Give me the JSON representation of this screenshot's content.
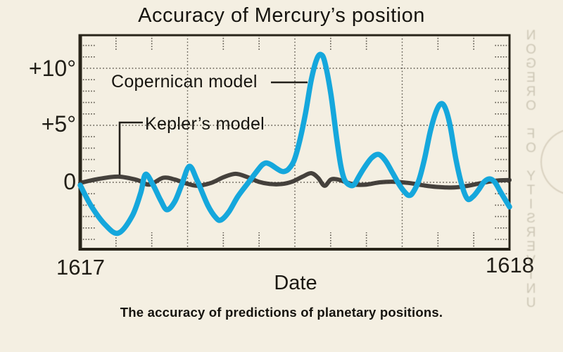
{
  "figure": {
    "title": "Accuracy of Mercury’s position",
    "caption": "The accuracy of predictions of planetary positions.",
    "watermark_text": "UNIVERSITY OF OREGON"
  },
  "axes": {
    "x_title": "Date",
    "x_tick_labels": [
      "1617",
      "1618"
    ],
    "y_tick_labels": [
      "+10°",
      "+5°",
      "0"
    ]
  },
  "annotations": {
    "copernican_label": "Copernican model",
    "kepler_label": "Kepler’s model"
  },
  "colors": {
    "background": "#f4efe2",
    "axis": "#282419",
    "grid": "#5a554b",
    "copernican": "#15a7dc",
    "kepler": "#3b3733",
    "leader": "#23201a"
  },
  "chart_data": {
    "type": "line",
    "title": "Accuracy of Mercury’s position",
    "xlabel": "Date",
    "ylabel": "",
    "x_range": [
      1617,
      1618
    ],
    "ylim": [
      -6.4,
      12.9
    ],
    "y_major_gridlines_deg": [
      0,
      5,
      10
    ],
    "y_minor_tick_step_deg": 1,
    "x_major_divisions": 4,
    "x_minor_per_major": 3,
    "grid": "dotted majors with stippled edge ticks",
    "legend_position": "inline labels with leader lines",
    "series": [
      {
        "name": "Copernican model",
        "color": "#15a7dc",
        "x_unit": "fraction of span 1617→1618",
        "y_unit": "degrees of error",
        "points": [
          [
            0.0,
            -0.25
          ],
          [
            0.026,
            -2.1
          ],
          [
            0.059,
            -3.75
          ],
          [
            0.089,
            -4.45
          ],
          [
            0.121,
            -2.95
          ],
          [
            0.141,
            -0.9
          ],
          [
            0.152,
            0.7
          ],
          [
            0.17,
            -0.25
          ],
          [
            0.187,
            -1.55
          ],
          [
            0.202,
            -2.4
          ],
          [
            0.22,
            -1.7
          ],
          [
            0.236,
            -0.25
          ],
          [
            0.254,
            1.4
          ],
          [
            0.272,
            0.2
          ],
          [
            0.297,
            -2.0
          ],
          [
            0.316,
            -3.1
          ],
          [
            0.328,
            -3.3
          ],
          [
            0.346,
            -2.6
          ],
          [
            0.367,
            -1.25
          ],
          [
            0.39,
            -0.1
          ],
          [
            0.408,
            0.8
          ],
          [
            0.423,
            1.5
          ],
          [
            0.433,
            1.7
          ],
          [
            0.444,
            1.55
          ],
          [
            0.456,
            1.25
          ],
          [
            0.467,
            1.0
          ],
          [
            0.475,
            0.95
          ],
          [
            0.485,
            1.15
          ],
          [
            0.498,
            1.9
          ],
          [
            0.511,
            3.6
          ],
          [
            0.525,
            6.1
          ],
          [
            0.538,
            8.95
          ],
          [
            0.551,
            10.8
          ],
          [
            0.561,
            11.2
          ],
          [
            0.57,
            10.5
          ],
          [
            0.584,
            7.7
          ],
          [
            0.597,
            3.95
          ],
          [
            0.607,
            1.45
          ],
          [
            0.616,
            0.2
          ],
          [
            0.628,
            -0.25
          ],
          [
            0.638,
            -0.2
          ],
          [
            0.649,
            0.5
          ],
          [
            0.662,
            1.3
          ],
          [
            0.679,
            2.15
          ],
          [
            0.695,
            2.45
          ],
          [
            0.711,
            1.9
          ],
          [
            0.728,
            0.8
          ],
          [
            0.744,
            -0.25
          ],
          [
            0.757,
            -0.9
          ],
          [
            0.766,
            -1.15
          ],
          [
            0.775,
            -0.9
          ],
          [
            0.789,
            0.2
          ],
          [
            0.802,
            2.05
          ],
          [
            0.816,
            4.55
          ],
          [
            0.83,
            6.3
          ],
          [
            0.841,
            6.9
          ],
          [
            0.851,
            6.45
          ],
          [
            0.862,
            4.9
          ],
          [
            0.875,
            2.05
          ],
          [
            0.889,
            -0.25
          ],
          [
            0.902,
            -1.45
          ],
          [
            0.915,
            -1.25
          ],
          [
            0.928,
            -0.65
          ],
          [
            0.941,
            0.05
          ],
          [
            0.954,
            0.3
          ],
          [
            0.966,
            0.0
          ],
          [
            0.98,
            -0.9
          ],
          [
            1.0,
            -2.15
          ]
        ]
      },
      {
        "name": "Kepler’s model",
        "color": "#3b3733",
        "x_unit": "fraction of span 1617→1618",
        "y_unit": "degrees of error",
        "points": [
          [
            0.0,
            -0.05
          ],
          [
            0.043,
            0.3
          ],
          [
            0.089,
            0.5
          ],
          [
            0.133,
            0.2
          ],
          [
            0.161,
            -0.2
          ],
          [
            0.193,
            0.4
          ],
          [
            0.22,
            0.25
          ],
          [
            0.243,
            -0.05
          ],
          [
            0.272,
            -0.3
          ],
          [
            0.305,
            -0.05
          ],
          [
            0.334,
            0.45
          ],
          [
            0.362,
            0.75
          ],
          [
            0.39,
            0.45
          ],
          [
            0.416,
            0.05
          ],
          [
            0.444,
            -0.15
          ],
          [
            0.469,
            -0.15
          ],
          [
            0.493,
            0.05
          ],
          [
            0.518,
            0.5
          ],
          [
            0.538,
            0.8
          ],
          [
            0.554,
            0.4
          ],
          [
            0.569,
            -0.3
          ],
          [
            0.584,
            0.25
          ],
          [
            0.6,
            0.25
          ],
          [
            0.62,
            0.0
          ],
          [
            0.641,
            -0.2
          ],
          [
            0.666,
            -0.2
          ],
          [
            0.698,
            0.0
          ],
          [
            0.731,
            0.05
          ],
          [
            0.764,
            -0.05
          ],
          [
            0.797,
            -0.25
          ],
          [
            0.83,
            -0.4
          ],
          [
            0.871,
            -0.45
          ],
          [
            0.903,
            -0.3
          ],
          [
            0.936,
            -0.05
          ],
          [
            0.969,
            0.15
          ],
          [
            1.0,
            0.2
          ]
        ]
      }
    ]
  }
}
